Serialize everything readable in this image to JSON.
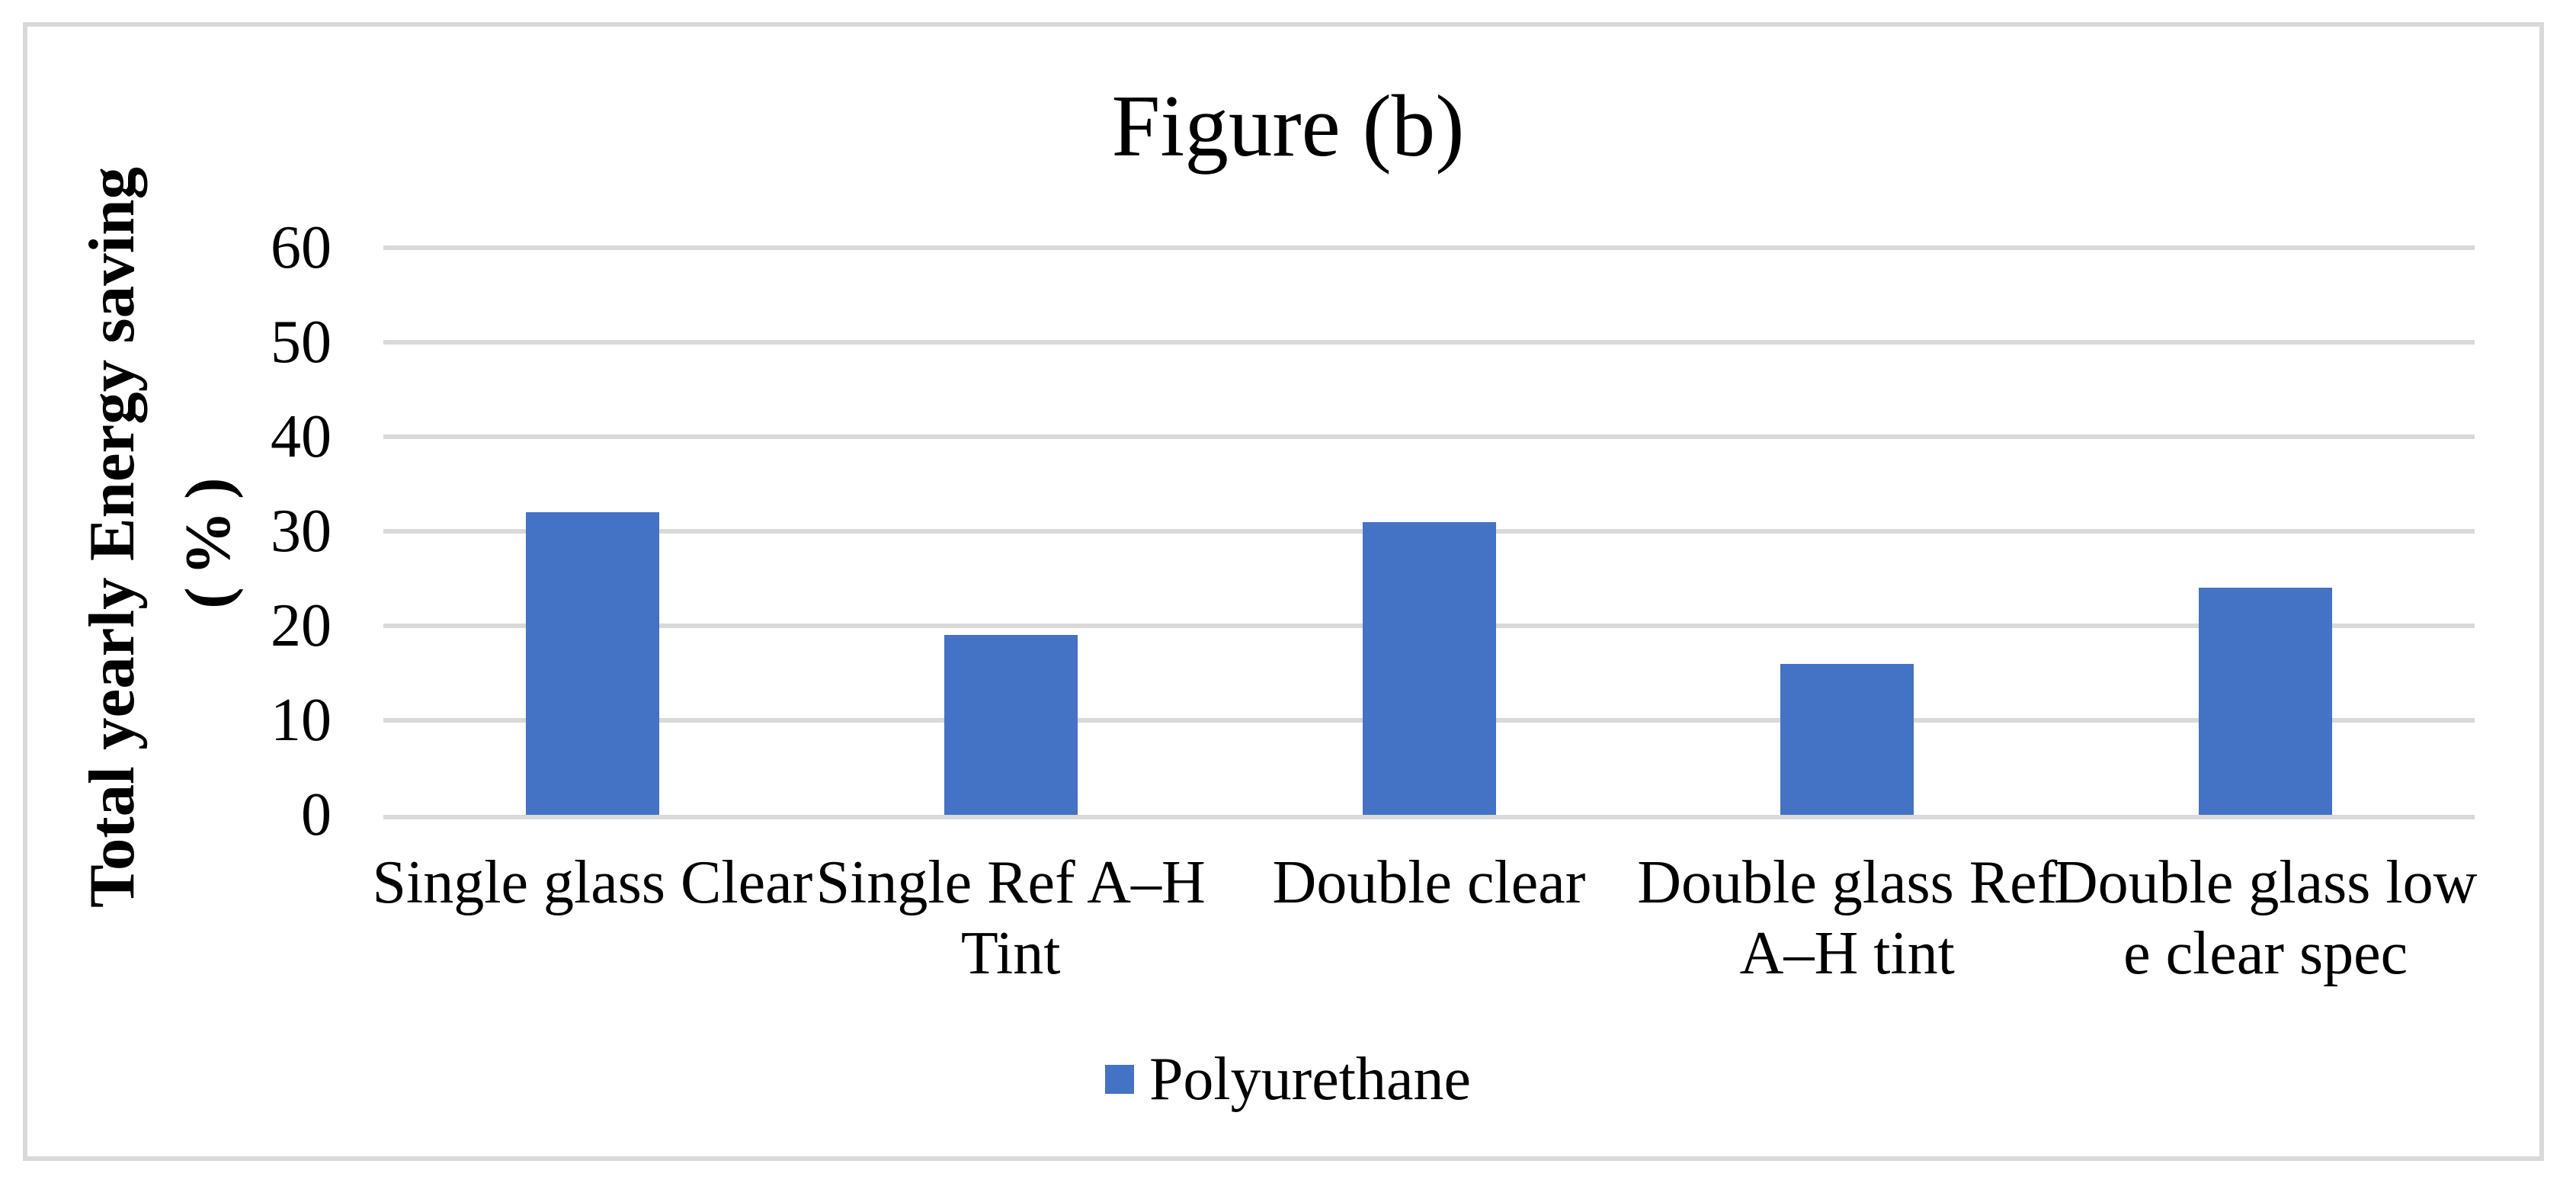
{
  "title": "Figure (b)",
  "y_axis": {
    "title_line1": "Total yearly Energy saving",
    "title_line2": "(%)",
    "tick_labels": [
      "0",
      "10",
      "20",
      "30",
      "40",
      "50",
      "60"
    ],
    "min": 0,
    "max": 60,
    "tick_step": 10
  },
  "legend": {
    "label": "Polyurethane",
    "swatch_color": "#4472c4"
  },
  "colors": {
    "bar": "#4472c4",
    "gridline": "#d9d9d9",
    "frame_border": "#d9d9d9",
    "text": "#000000",
    "background": "#ffffff"
  },
  "chart_data": {
    "type": "bar",
    "title": "Figure (b)",
    "xlabel": "",
    "ylabel": "Total yearly Energy saving (%)",
    "ylim": [
      0,
      60
    ],
    "grid": "horizontal",
    "legend_position": "bottom-center",
    "categories": [
      "Single glass Clear",
      "Single Ref A–H Tint",
      "Double clear",
      "Double glass Ref A–H tint",
      "Double glass low e clear spec"
    ],
    "category_label_lines": [
      [
        "Single glass Clear"
      ],
      [
        "Single Ref A–H",
        "Tint"
      ],
      [
        "Double clear"
      ],
      [
        "Double glass Ref",
        "A–H tint"
      ],
      [
        "Double glass low",
        "e clear spec"
      ]
    ],
    "series": [
      {
        "name": "Polyurethane",
        "values": [
          32,
          19,
          31,
          16,
          24
        ],
        "color": "#4472c4"
      }
    ]
  }
}
